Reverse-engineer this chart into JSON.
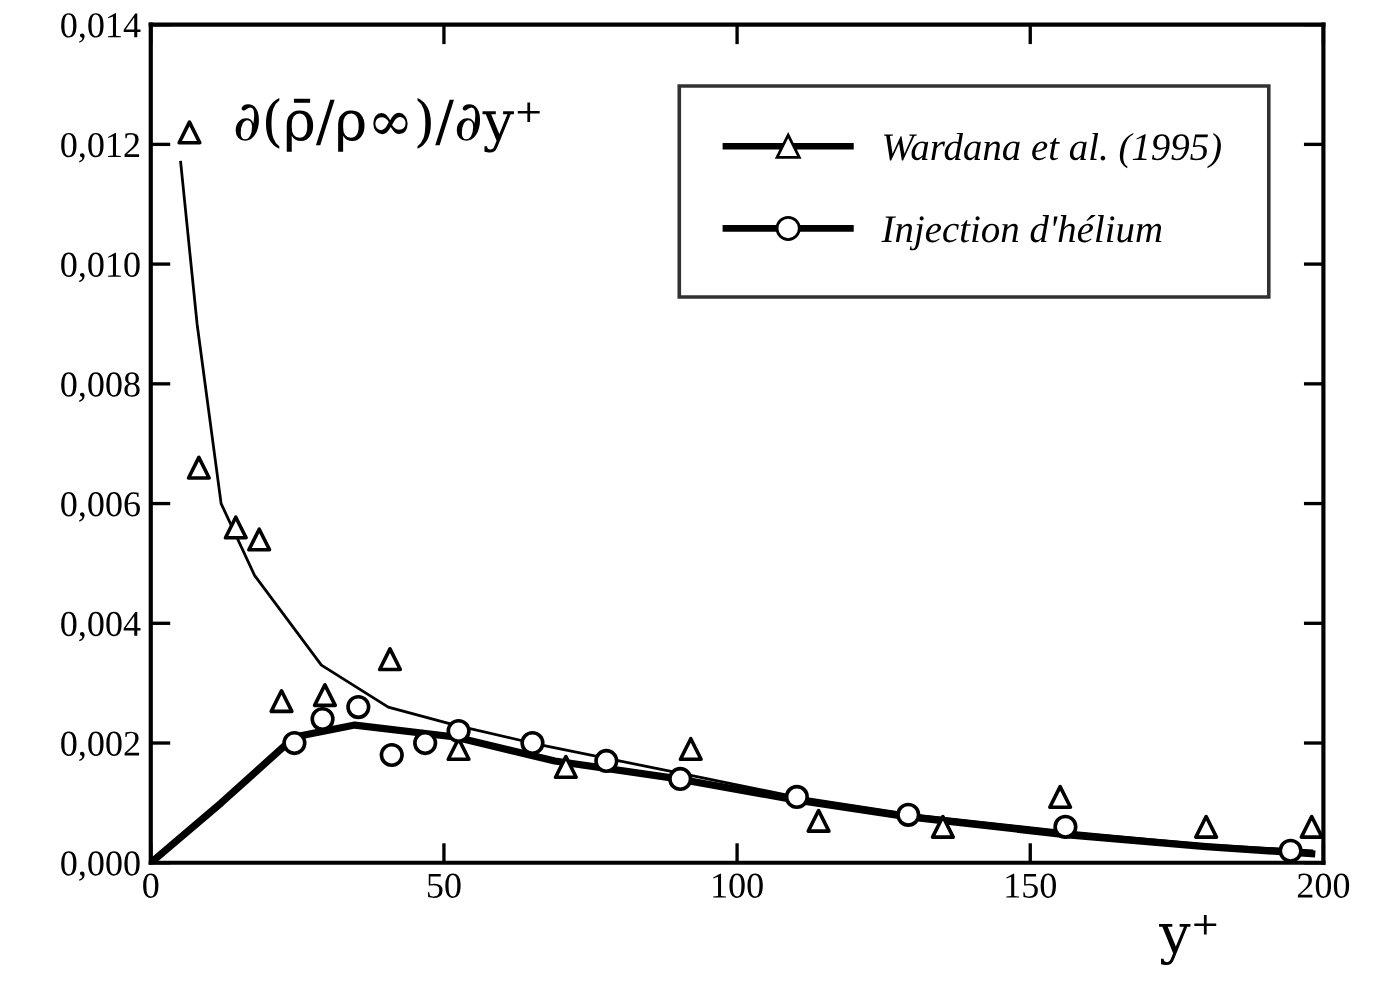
{
  "chart_data": {
    "type": "scatter",
    "ylabel": "∂(ρ̄/ρ∞)/∂y⁺",
    "xlabel": "y⁺",
    "xlim": [
      0,
      200
    ],
    "xticks": [
      0,
      50,
      100,
      150,
      200
    ],
    "ylim": [
      0,
      0.014
    ],
    "yticks": [
      {
        "value": 0,
        "label": "0,000"
      },
      {
        "value": 0.002,
        "label": "0,002"
      },
      {
        "value": 0.004,
        "label": "0,004"
      },
      {
        "value": 0.006,
        "label": "0,006"
      },
      {
        "value": 0.008,
        "label": "0,008"
      },
      {
        "value": 0.01,
        "label": "0,010"
      },
      {
        "value": 0.012,
        "label": "0,012"
      },
      {
        "value": 0.014,
        "label": "0,014"
      }
    ],
    "grid": false,
    "legend": "top right",
    "series": [
      {
        "name": "Wardana et al. (1995)",
        "marker": "triangle",
        "color": "#000000",
        "x": [
          6.6,
          8.2,
          14.5,
          18.5,
          22.3,
          29.7,
          40.8,
          52.5,
          70.8,
          92.1,
          113.9,
          135.1,
          155.1,
          180,
          198
        ],
        "values": [
          0.0122,
          0.0066,
          0.0056,
          0.0054,
          0.0027,
          0.0028,
          0.0034,
          0.0019,
          0.0016,
          0.0019,
          0.0007,
          0.0006,
          0.0011,
          0.0006,
          0.0006
        ]
      },
      {
        "type": "line",
        "line_style": "solid",
        "color": "#000000",
        "x": [
          5.1,
          7.9,
          12,
          17.7,
          29.1,
          40.5,
          51.9,
          65,
          90,
          110,
          130,
          156,
          180,
          198
        ],
        "values": [
          0.0117,
          0.009,
          0.006,
          0.0048,
          0.0033,
          0.0026,
          0.0023,
          0.002,
          0.0015,
          0.0011,
          0.0008,
          0.00052,
          0.0003,
          0.0002
        ]
      },
      {
        "name": "Injection d'hélium",
        "marker": "circle",
        "color": "#000000",
        "x": [
          24.5,
          29.3,
          35.4,
          41.1,
          46.8,
          52.5,
          65.1,
          77.7,
          90.3,
          110.2,
          129.2,
          156,
          194.4
        ],
        "values": [
          0.002,
          0.0024,
          0.0026,
          0.0018,
          0.002,
          0.0022,
          0.002,
          0.0017,
          0.0014,
          0.0011,
          0.0008,
          0.0006,
          0.0002
        ]
      },
      {
        "type": "line",
        "line_style": "solid",
        "color": "#000000",
        "x": [
          0,
          12,
          24.5,
          34.8,
          51.9,
          68.9,
          90,
          110,
          129,
          156,
          180,
          198
        ],
        "values": [
          0,
          0.001,
          0.0021,
          0.0023,
          0.0021,
          0.0017,
          0.0014,
          0.00105,
          0.00077,
          0.00047,
          0.00027,
          0.00015
        ]
      }
    ]
  }
}
